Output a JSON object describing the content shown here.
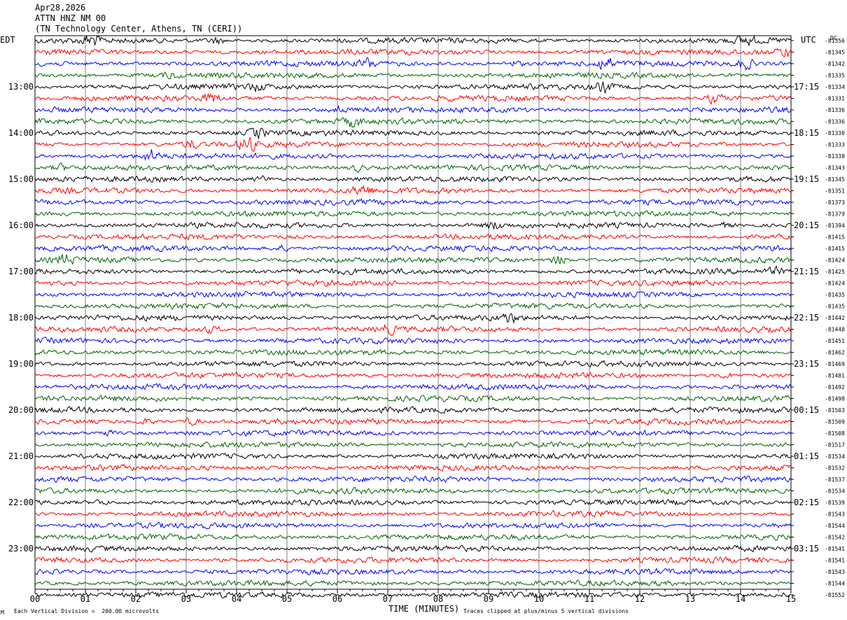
{
  "header": {
    "date": "Apr28,2026",
    "station": "ATTN HNZ NM 00",
    "location": "(TN Technology Center, Athens, TN (CERI))"
  },
  "left_tz": "EDT",
  "right_tz": "UTC",
  "dc_label": "DC",
  "footer": {
    "scale_note": "Each Vertical Division =  200.00 microvolts",
    "clip_note": "Traces clipped at plus/minus 5 vertical divisions",
    "corner_mark": "M"
  },
  "colors": {
    "black": "#000000",
    "red": "#ff0000",
    "blue": "#0000ff",
    "green": "#006400",
    "grid": "#808080"
  },
  "chart_data": {
    "type": "line",
    "title": "",
    "xlabel": "TIME (MINUTES)",
    "ylabel": "",
    "xlim": [
      0,
      15
    ],
    "x_ticks": [
      "00",
      "01",
      "02",
      "03",
      "04",
      "05",
      "06",
      "07",
      "08",
      "09",
      "10",
      "11",
      "12",
      "13",
      "14",
      "15"
    ],
    "trace_minutes": 15,
    "color_cycle": [
      "#000000",
      "#ff0000",
      "#0000ff",
      "#006400"
    ],
    "left_hour_labels": [
      "13:00",
      "14:00",
      "15:00",
      "16:00",
      "17:00",
      "18:00",
      "19:00",
      "20:00",
      "21:00",
      "22:00",
      "23:00"
    ],
    "right_hour_labels": [
      "17:15",
      "18:15",
      "19:15",
      "20:15",
      "21:15",
      "22:15",
      "23:15",
      "00:15",
      "01:15",
      "02:15",
      "03:15"
    ],
    "dc_offsets": [
      "-81356",
      "-81345",
      "-81342",
      "-81335",
      "-81334",
      "-81331",
      "-81336",
      "-81336",
      "-81330",
      "-81333",
      "-81338",
      "-81343",
      "-81345",
      "-81351",
      "-81373",
      "-81379",
      "-81394",
      "-81415",
      "-81415",
      "-81424",
      "-81425",
      "-81424",
      "-81435",
      "-81435",
      "-81442",
      "-81448",
      "-81451",
      "-81462",
      "-81469",
      "-81481",
      "-81492",
      "-81498",
      "-81503",
      "-81509",
      "-81508",
      "-81517",
      "-81534",
      "-81532",
      "-81537",
      "-81534",
      "-81539",
      "-81543",
      "-81544",
      "-81542",
      "-81541",
      "-81541",
      "-81543",
      "-81544",
      "-81552"
    ],
    "events": [
      {
        "trace": 0,
        "minute": 1.1,
        "amp": 2.0
      },
      {
        "trace": 0,
        "minute": 3.6,
        "amp": 1.6
      },
      {
        "trace": 0,
        "minute": 14.1,
        "amp": 1.4
      },
      {
        "trace": 1,
        "minute": 14.9,
        "amp": 1.8
      },
      {
        "trace": 2,
        "minute": 6.6,
        "amp": 1.6
      },
      {
        "trace": 2,
        "minute": 9.5,
        "amp": 1.4
      },
      {
        "trace": 2,
        "minute": 11.3,
        "amp": 2.6
      },
      {
        "trace": 2,
        "minute": 14.1,
        "amp": 2.2
      },
      {
        "trace": 3,
        "minute": 2.7,
        "amp": 1.3
      },
      {
        "trace": 4,
        "minute": 11.3,
        "amp": 1.8
      },
      {
        "trace": 4,
        "minute": 4.4,
        "amp": 1.3
      },
      {
        "trace": 5,
        "minute": 3.5,
        "amp": 1.8
      },
      {
        "trace": 5,
        "minute": 13.5,
        "amp": 2.6
      },
      {
        "trace": 6,
        "minute": 6.0,
        "amp": 1.4
      },
      {
        "trace": 7,
        "minute": 6.3,
        "amp": 1.4
      },
      {
        "trace": 8,
        "minute": 4.4,
        "amp": 1.8
      },
      {
        "trace": 9,
        "minute": 3.1,
        "amp": 1.8
      },
      {
        "trace": 9,
        "minute": 4.2,
        "amp": 2.4
      },
      {
        "trace": 10,
        "minute": 2.3,
        "amp": 2.2
      },
      {
        "trace": 11,
        "minute": 6.4,
        "amp": 1.8
      },
      {
        "trace": 11,
        "minute": 0.5,
        "amp": 1.3
      },
      {
        "trace": 12,
        "minute": 4.5,
        "amp": 1.4
      },
      {
        "trace": 13,
        "minute": 6.5,
        "amp": 2.0
      },
      {
        "trace": 16,
        "minute": 9.1,
        "amp": 1.6
      },
      {
        "trace": 16,
        "minute": 13.7,
        "amp": 1.4
      },
      {
        "trace": 18,
        "minute": 4.9,
        "amp": 1.3
      },
      {
        "trace": 19,
        "minute": 10.4,
        "amp": 2.6
      },
      {
        "trace": 19,
        "minute": 0.6,
        "amp": 1.6
      },
      {
        "trace": 20,
        "minute": 14.7,
        "amp": 1.2
      },
      {
        "trace": 24,
        "minute": 9.4,
        "amp": 1.4
      },
      {
        "trace": 25,
        "minute": 3.5,
        "amp": 1.6
      },
      {
        "trace": 25,
        "minute": 7.0,
        "amp": 1.3
      },
      {
        "trace": 29,
        "minute": 13.7,
        "amp": 1.4
      },
      {
        "trace": 33,
        "minute": 2.2,
        "amp": 1.4
      },
      {
        "trace": 33,
        "minute": 3.1,
        "amp": 1.8
      },
      {
        "trace": 34,
        "minute": 1.4,
        "amp": 1.8
      },
      {
        "trace": 40,
        "minute": 1.3,
        "amp": 1.2
      }
    ]
  }
}
